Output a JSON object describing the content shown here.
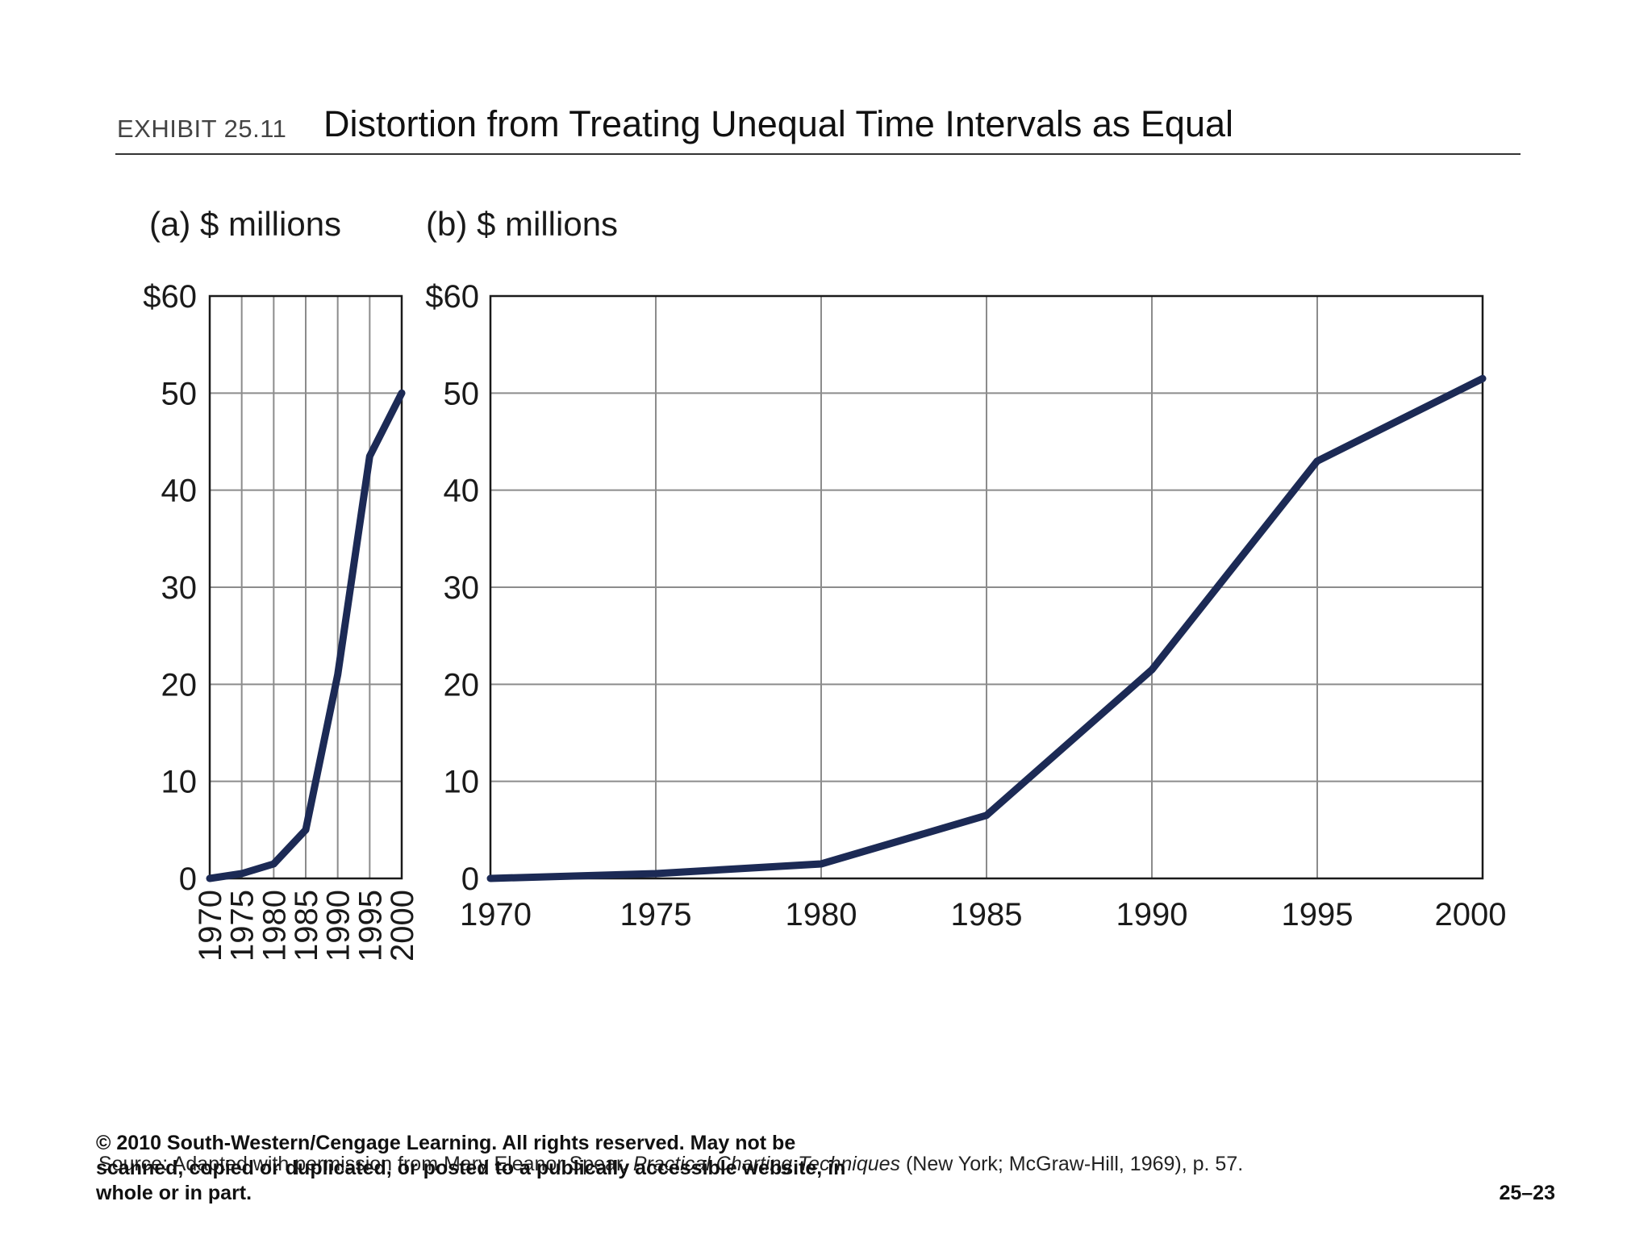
{
  "header": {
    "exhibit": "EXHIBIT 25.11",
    "title": "Distortion from Treating Unequal Time Intervals as Equal"
  },
  "chart_data": [
    {
      "type": "line",
      "panel_label": "(a) $ millions",
      "x_spacing": "equal",
      "x": [
        "1970",
        "1975",
        "1980",
        "1985",
        "1990",
        "1995",
        "2000"
      ],
      "series": [
        {
          "values": [
            0,
            0.5,
            1.5,
            5,
            21,
            43.5,
            50
          ]
        }
      ],
      "ylim": [
        0,
        60
      ],
      "yticks": [
        "0",
        "10",
        "20",
        "30",
        "40",
        "50",
        "$60"
      ],
      "grid": true,
      "line_color": "#1c2a55"
    },
    {
      "type": "line",
      "panel_label": "(b) $ millions",
      "x_spacing": "proportional",
      "x": [
        "1970",
        "1975",
        "1980",
        "1985",
        "1990",
        "1995",
        "2000"
      ],
      "series": [
        {
          "values": [
            0,
            0.5,
            1.5,
            6.5,
            21.5,
            43,
            51.5
          ]
        }
      ],
      "ylim": [
        0,
        60
      ],
      "yticks": [
        "0",
        "10",
        "20",
        "30",
        "40",
        "50",
        "$60"
      ],
      "grid": true,
      "line_color": "#1c2a55"
    }
  ],
  "footer": {
    "source_prefix": "Source: Adapted with permission from Mary Eleanor Spear, ",
    "source_book": "Practical Charting Techniques",
    "source_suffix": " (New York; McGraw-Hill, 1969), p. 57.",
    "copyright": "© 2010 South-Western/Cengage Learning. All rights reserved.  May not be scanned, copied or duplicated, or posted to a publically accessible website, in whole or in part.",
    "slide_number": "25–23"
  }
}
